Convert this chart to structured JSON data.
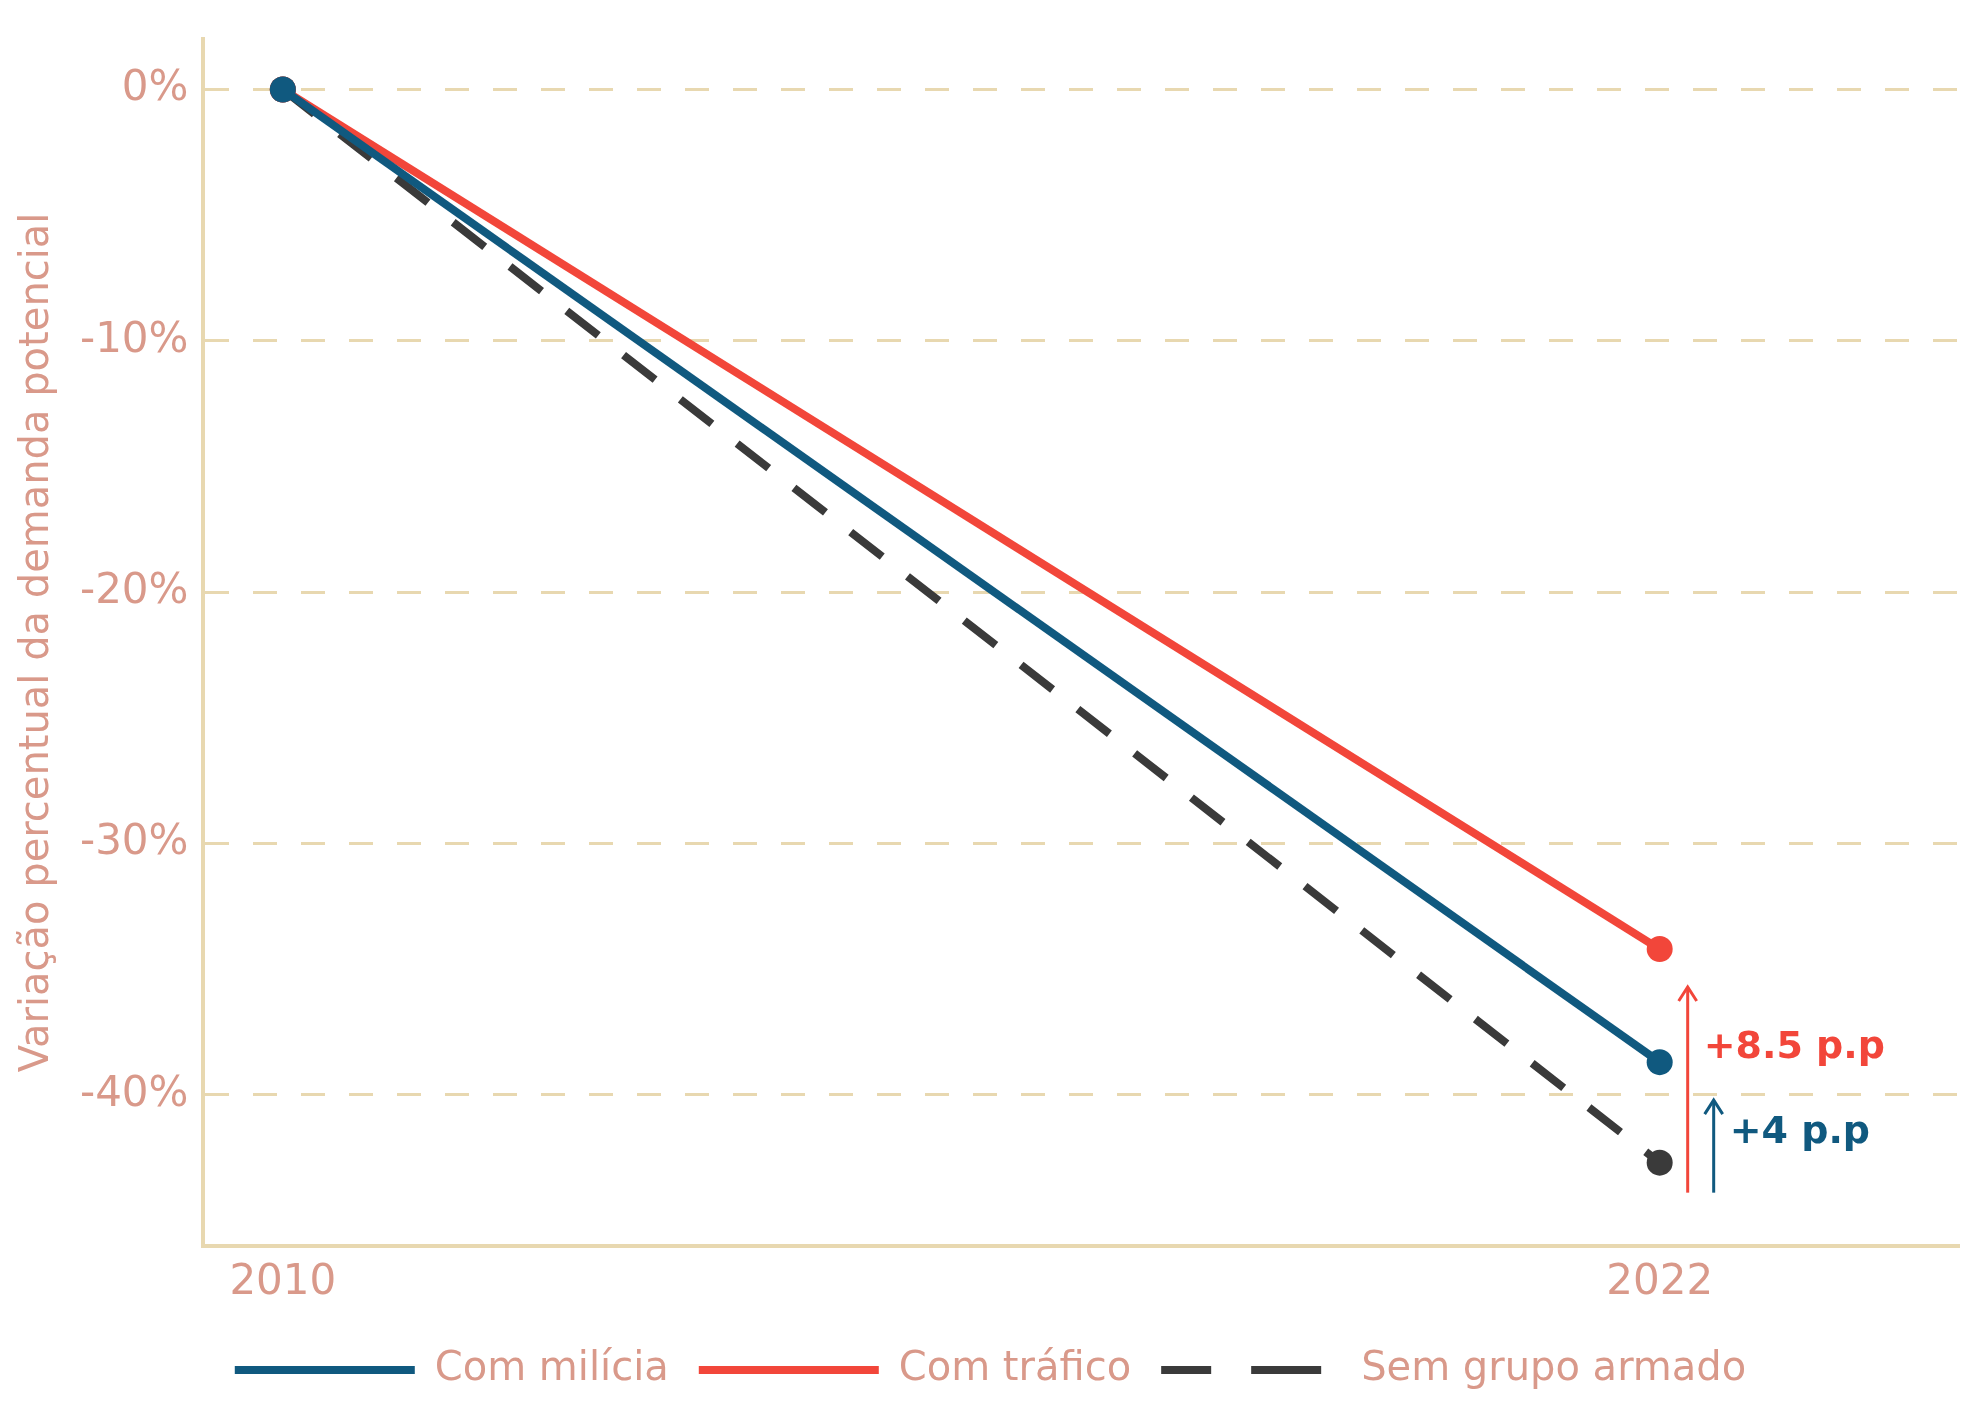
{
  "chart_data": {
    "type": "line",
    "ylabel": "Variação percentual da demanda potencial",
    "x": [
      2010,
      2022
    ],
    "series": [
      {
        "name": "Com milícia",
        "color": "#10597f",
        "values": [
          0,
          -38.7
        ]
      },
      {
        "name": "Com tráfico",
        "color": "#f2463a",
        "values": [
          0,
          -34.2
        ]
      },
      {
        "name": "Sem grupo armado",
        "color": "#3a3a3a",
        "values": [
          0,
          -42.7
        ],
        "line_style": "dashed"
      }
    ],
    "xlim": [
      2009.3,
      2024.6
    ],
    "xticks": [
      2010,
      2022
    ],
    "ylim": [
      -46,
      2
    ],
    "yticks": [
      {
        "value": 0,
        "label": "0%"
      },
      {
        "value": -10,
        "label": "-10%"
      },
      {
        "value": -20,
        "label": "-20%"
      },
      {
        "value": -30,
        "label": "-30%"
      },
      {
        "value": -40,
        "label": "-40%"
      }
    ],
    "grid": "y",
    "legend": "bottom",
    "marker": "circle",
    "line_style": "solid",
    "annotations": [
      "+8.5 p.p",
      "+4 p.p"
    ]
  }
}
